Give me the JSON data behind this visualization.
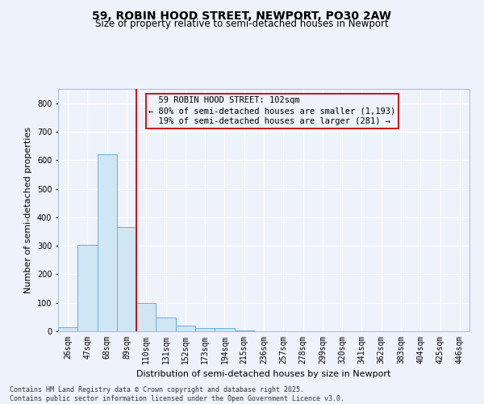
{
  "title": "59, ROBIN HOOD STREET, NEWPORT, PO30 2AW",
  "subtitle": "Size of property relative to semi-detached houses in Newport",
  "xlabel": "Distribution of semi-detached houses by size in Newport",
  "ylabel": "Number of semi-detached properties",
  "bar_labels": [
    "26sqm",
    "47sqm",
    "68sqm",
    "89sqm",
    "110sqm",
    "131sqm",
    "152sqm",
    "173sqm",
    "194sqm",
    "215sqm",
    "236sqm",
    "257sqm",
    "278sqm",
    "299sqm",
    "320sqm",
    "341sqm",
    "362sqm",
    "383sqm",
    "404sqm",
    "425sqm",
    "446sqm"
  ],
  "bar_values": [
    13,
    303,
    621,
    365,
    100,
    48,
    20,
    11,
    11,
    2,
    0,
    0,
    0,
    0,
    0,
    0,
    0,
    0,
    0,
    0,
    0
  ],
  "bar_color": "#cfe6f5",
  "bar_edge_color": "#6aafd6",
  "property_line_x": 3.5,
  "property_size": "102sqm",
  "pct_smaller": 80,
  "n_smaller": 1193,
  "pct_larger": 19,
  "n_larger": 281,
  "annotation_box_color": "#cc0000",
  "ylim": [
    0,
    850
  ],
  "yticks": [
    0,
    100,
    200,
    300,
    400,
    500,
    600,
    700,
    800
  ],
  "footer_line1": "Contains HM Land Registry data © Crown copyright and database right 2025.",
  "footer_line2": "Contains public sector information licensed under the Open Government Licence v3.0.",
  "background_color": "#eef2fb",
  "grid_color": "#ffffff",
  "title_fontsize": 10,
  "subtitle_fontsize": 8.5,
  "axis_label_fontsize": 8,
  "tick_fontsize": 7,
  "annotation_fontsize": 7.5,
  "footer_fontsize": 6
}
